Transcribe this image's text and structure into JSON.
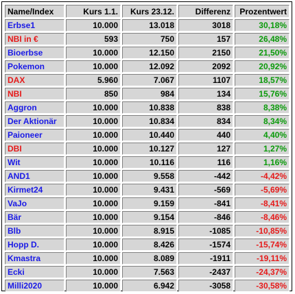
{
  "headers": [
    "Name/Index",
    "Kurs 1.1.",
    "Kurs 23.12.",
    "Differenz",
    "Prozentwert"
  ],
  "rows": [
    {
      "name": "Erbse1",
      "kurs1": "10.000",
      "kurs2": "13.018",
      "diff": "3018",
      "pct": "30,18%",
      "name_color": "blue",
      "pct_color": "pos"
    },
    {
      "name": "NBI in €",
      "kurs1": "593",
      "kurs2": "750",
      "diff": "157",
      "pct": "26,48%",
      "name_color": "red",
      "pct_color": "pos"
    },
    {
      "name": "Bioerbse",
      "kurs1": "10.000",
      "kurs2": "12.150",
      "diff": "2150",
      "pct": "21,50%",
      "name_color": "blue",
      "pct_color": "pos"
    },
    {
      "name": "Pokemon",
      "kurs1": "10.000",
      "kurs2": "12.092",
      "diff": "2092",
      "pct": "20,92%",
      "name_color": "blue",
      "pct_color": "pos"
    },
    {
      "name": "DAX",
      "kurs1": "5.960",
      "kurs2": "7.067",
      "diff": "1107",
      "pct": "18,57%",
      "name_color": "red",
      "pct_color": "pos"
    },
    {
      "name": "NBI",
      "kurs1": "850",
      "kurs2": "984",
      "diff": "134",
      "pct": "15,76%",
      "name_color": "red",
      "pct_color": "pos"
    },
    {
      "name": "Aggron",
      "kurs1": "10.000",
      "kurs2": "10.838",
      "diff": "838",
      "pct": "8,38%",
      "name_color": "blue",
      "pct_color": "pos"
    },
    {
      "name": "Der Aktionär",
      "kurs1": "10.000",
      "kurs2": "10.834",
      "diff": "834",
      "pct": "8,34%",
      "name_color": "blue",
      "pct_color": "pos"
    },
    {
      "name": "Paioneer",
      "kurs1": "10.000",
      "kurs2": "10.440",
      "diff": "440",
      "pct": "4,40%",
      "name_color": "blue",
      "pct_color": "pos"
    },
    {
      "name": "DBI",
      "kurs1": "10.000",
      "kurs2": "10.127",
      "diff": "127",
      "pct": "1,27%",
      "name_color": "red",
      "pct_color": "pos"
    },
    {
      "name": "Wit",
      "kurs1": "10.000",
      "kurs2": "10.116",
      "diff": "116",
      "pct": "1,16%",
      "name_color": "blue",
      "pct_color": "pos"
    },
    {
      "name": "AND1",
      "kurs1": "10.000",
      "kurs2": "9.558",
      "diff": "-442",
      "pct": "-4,42%",
      "name_color": "blue",
      "pct_color": "neg"
    },
    {
      "name": "Kirmet24",
      "kurs1": "10.000",
      "kurs2": "9.431",
      "diff": "-569",
      "pct": "-5,69%",
      "name_color": "blue",
      "pct_color": "neg"
    },
    {
      "name": "VaJo",
      "kurs1": "10.000",
      "kurs2": "9.159",
      "diff": "-841",
      "pct": "-8,41%",
      "name_color": "blue",
      "pct_color": "neg"
    },
    {
      "name": "Bär",
      "kurs1": "10.000",
      "kurs2": "9.154",
      "diff": "-846",
      "pct": "-8,46%",
      "name_color": "blue",
      "pct_color": "neg"
    },
    {
      "name": "Blb",
      "kurs1": "10.000",
      "kurs2": "8.915",
      "diff": "-1085",
      "pct": "-10,85%",
      "name_color": "blue",
      "pct_color": "neg"
    },
    {
      "name": "Hopp D.",
      "kurs1": "10.000",
      "kurs2": "8.426",
      "diff": "-1574",
      "pct": "-15,74%",
      "name_color": "blue",
      "pct_color": "neg"
    },
    {
      "name": "Kmastra",
      "kurs1": "10.000",
      "kurs2": "8.089",
      "diff": "-1911",
      "pct": "-19,11%",
      "name_color": "blue",
      "pct_color": "neg"
    },
    {
      "name": "Ecki",
      "kurs1": "10.000",
      "kurs2": "7.563",
      "diff": "-2437",
      "pct": "-24,37%",
      "name_color": "blue",
      "pct_color": "neg"
    },
    {
      "name": "Milli2020",
      "kurs1": "10.000",
      "kurs2": "6.942",
      "diff": "-3058",
      "pct": "-30,58%",
      "name_color": "blue",
      "pct_color": "neg"
    }
  ],
  "colors": {
    "blue": "#1a1ae6",
    "red": "#e61a1a",
    "pos": "#0a9a0a",
    "neg": "#e61a1a",
    "cell_bg": "#d6d6d6"
  }
}
